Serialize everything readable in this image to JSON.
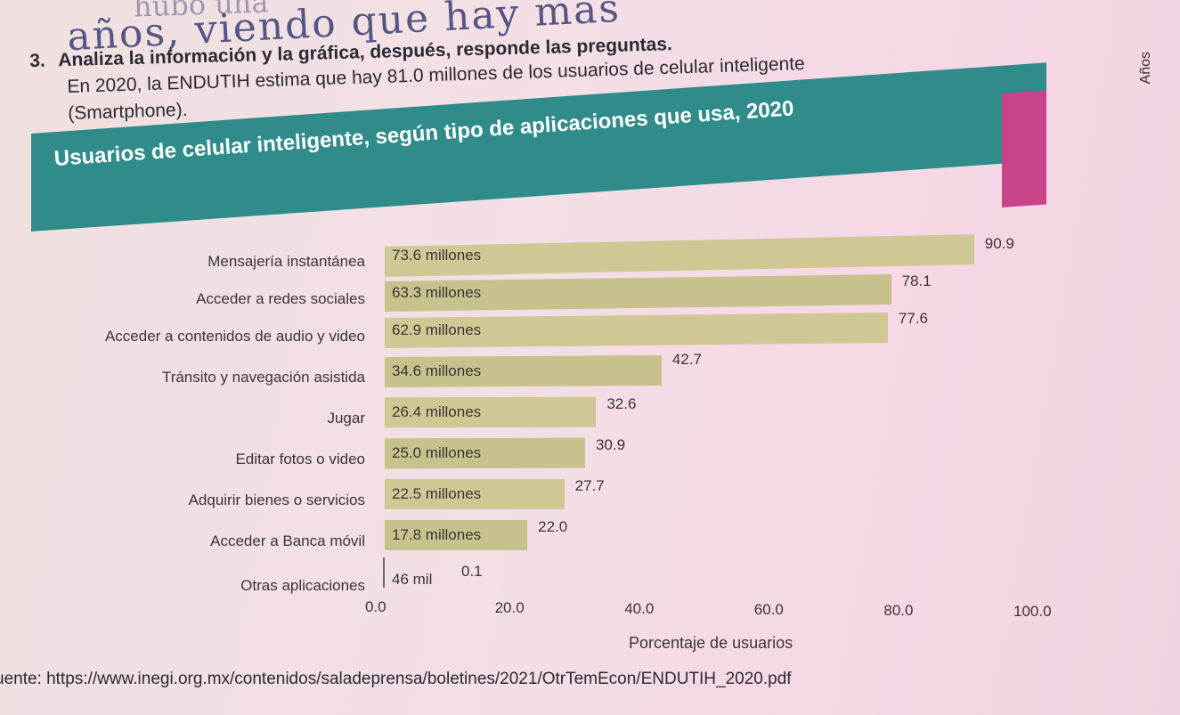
{
  "handwriting": {
    "line1": "años, viendo que hay más",
    "line2": "hubo una"
  },
  "question": {
    "number": "3.",
    "text_line1": "Analiza la información y la gráfica, después, responde las preguntas."
  },
  "context": {
    "line1": "En 2020, la ENDUTIH estima que hay 81.0 millones de los usuarios de celular inteligente",
    "line2": "(Smartphone)."
  },
  "side_label": "Años",
  "colors": {
    "banner": "#2f8c8a",
    "banner_accent": "#c9438b",
    "bar": "#cfc894",
    "background": "#f3dfe6"
  },
  "chart_data": {
    "type": "bar",
    "orientation": "horizontal",
    "title": "Usuarios de celular inteligente, según tipo de aplicaciones que usa, 2020",
    "xlabel": "Porcentaje de usuarios",
    "ylabel": "",
    "xlim": [
      0,
      100
    ],
    "xticks": [
      "0.0",
      "20.0",
      "40.0",
      "60.0",
      "80.0",
      "100.0"
    ],
    "grid": false,
    "categories": [
      "Mensajería instantánea",
      "Acceder a redes sociales",
      "Acceder a contenidos de audio y video",
      "Tránsito y navegación asistida",
      "Jugar",
      "Editar fotos o video",
      "Adquirir bienes o servicios",
      "Acceder a Banca móvil",
      "Otras aplicaciones"
    ],
    "values": [
      90.9,
      78.1,
      77.6,
      42.7,
      32.6,
      30.9,
      27.7,
      22.0,
      0.1
    ],
    "value_labels": [
      "90.9",
      "78.1",
      "77.6",
      "42.7",
      "32.6",
      "30.9",
      "27.7",
      "22.0",
      "0.1"
    ],
    "user_labels": [
      "73.6 millones",
      "63.3 millones",
      "62.9 millones",
      "34.6 millones",
      "26.4 millones",
      "25.0 millones",
      "22.5 millones",
      "17.8 millones",
      "46 mil"
    ]
  },
  "source": "uente: https://www.inegi.org.mx/contenidos/saladeprensa/boletines/2021/OtrTemEcon/ENDUTIH_2020.pdf"
}
